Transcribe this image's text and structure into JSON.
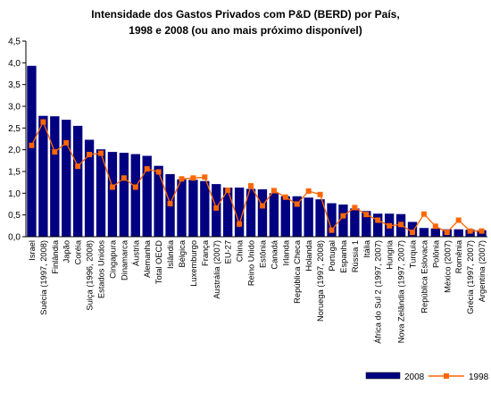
{
  "chart_data": {
    "type": "bar",
    "title": "Intensidade dos Gastos Privados com P&D (BERD) por País,",
    "subtitle": "1998 e 2008 (ou ano mais próximo disponível)",
    "ylim": [
      0,
      4.5
    ],
    "yticks": [
      "0,0",
      "0,5",
      "1,0",
      "1,5",
      "2,0",
      "2,5",
      "3,0",
      "3,5",
      "4,0",
      "4,5"
    ],
    "legend_position": "bottom-right",
    "categories": [
      "Israel",
      "Suécia (1997, 2008)",
      "Finlândia",
      "Japão",
      "Coréia",
      "Suiça (1996, 2008)",
      "Estados Unidos",
      "Cingapura",
      "Dinamarca",
      "Áustria",
      "Alemanha",
      "Total OECD",
      "Islândia",
      "Bélgica",
      "Luxemburgo",
      "França",
      "Austrália (2007)",
      "EU-27",
      "China",
      "Reino Unido",
      "Estônia",
      "Canadá",
      "Irlanda",
      "República Checa",
      "Holanda",
      "Noruega (1997, 2008)",
      "Portugal",
      "Espanha",
      "Rússia 1",
      "Itália",
      "África do Sul 2 (1997, 2007)",
      "Hungria",
      "Nova Zelândia (1997, 2007)",
      "Turquia",
      "República Eslovaca",
      "Polônia",
      "México (2007)",
      "Romênia",
      "Grécia (1997, 2007)",
      "Argentina (2007)"
    ],
    "series": [
      {
        "name": "2008",
        "type": "bar",
        "color": "#000080",
        "values": [
          3.93,
          2.78,
          2.77,
          2.69,
          2.55,
          2.23,
          2.01,
          1.95,
          1.93,
          1.9,
          1.86,
          1.63,
          1.44,
          1.32,
          1.31,
          1.28,
          1.21,
          1.13,
          1.13,
          1.1,
          1.09,
          1.0,
          0.93,
          0.93,
          0.9,
          0.86,
          0.77,
          0.74,
          0.65,
          0.59,
          0.53,
          0.53,
          0.52,
          0.34,
          0.2,
          0.19,
          0.17,
          0.17,
          0.16,
          0.15
        ]
      },
      {
        "name": "1998",
        "type": "line",
        "color": "#FF6600",
        "values": [
          2.1,
          2.64,
          1.95,
          2.16,
          1.62,
          1.89,
          1.92,
          1.14,
          1.35,
          1.14,
          1.56,
          1.49,
          0.76,
          1.33,
          1.35,
          1.37,
          0.66,
          1.07,
          0.29,
          1.17,
          0.71,
          1.06,
          0.91,
          0.75,
          1.05,
          0.97,
          0.15,
          0.48,
          0.67,
          0.51,
          0.38,
          0.25,
          0.28,
          0.1,
          0.52,
          0.24,
          0.1,
          0.38,
          0.13,
          0.13
        ]
      }
    ]
  }
}
